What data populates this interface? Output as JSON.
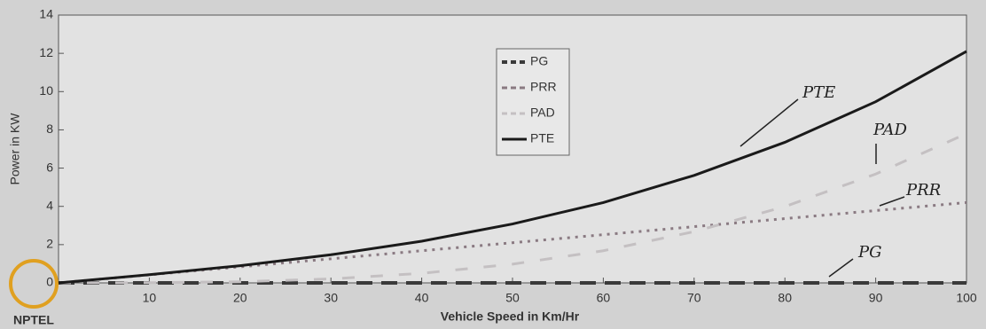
{
  "chart_data": {
    "type": "line",
    "x_label": "Vehicle Speed in Km/Hr",
    "y_label": "Power in KW",
    "x": [
      0,
      10,
      20,
      30,
      40,
      50,
      60,
      70,
      80,
      90,
      100
    ],
    "series": [
      {
        "name": "PG",
        "color": "#3a3a3a",
        "dash": "dashed",
        "values": [
          0,
          0,
          0,
          0,
          0,
          0,
          0,
          0,
          0,
          0,
          0
        ]
      },
      {
        "name": "PRR",
        "color": "#8a7a82",
        "dash": "dotted",
        "values": [
          0,
          0.42,
          0.84,
          1.26,
          1.68,
          2.1,
          2.52,
          2.94,
          3.36,
          3.78,
          4.2
        ]
      },
      {
        "name": "PAD",
        "color": "#c4c0c2",
        "dash": "light-dashed",
        "values": [
          0,
          0.01,
          0.06,
          0.21,
          0.5,
          0.98,
          1.68,
          2.68,
          3.99,
          5.69,
          7.8
        ]
      },
      {
        "name": "PTE",
        "color": "#1a1a1a",
        "dash": "solid",
        "values": [
          0,
          0.43,
          0.9,
          1.47,
          2.18,
          3.08,
          4.2,
          5.62,
          7.35,
          9.47,
          12.1
        ]
      }
    ],
    "xlim": [
      0,
      100
    ],
    "xticks": [
      10,
      20,
      30,
      40,
      50,
      60,
      70,
      80,
      90,
      100
    ],
    "ylim": [
      0,
      14
    ],
    "yticks": [
      0,
      2,
      4,
      6,
      8,
      10,
      12,
      14
    ],
    "annotations": [
      "PTE",
      "PAD",
      "PRR",
      "PG"
    ],
    "watermark": "NPTEL"
  }
}
